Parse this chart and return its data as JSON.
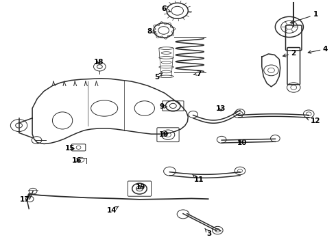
{
  "bg_color": "#ffffff",
  "line_color": "#2a2a2a",
  "figsize": [
    4.9,
    3.6
  ],
  "dpi": 100,
  "label_positions": {
    "1": [
      0.93,
      0.055,
      0.88,
      0.09
    ],
    "2": [
      0.87,
      0.21,
      0.84,
      0.23
    ],
    "3": [
      0.62,
      0.95,
      0.6,
      0.92
    ],
    "4": [
      0.97,
      0.195,
      0.92,
      0.215
    ],
    "5": [
      0.47,
      0.31,
      0.5,
      0.32
    ],
    "6": [
      0.49,
      0.032,
      0.52,
      0.048
    ],
    "7": [
      0.59,
      0.295,
      0.565,
      0.308
    ],
    "8": [
      0.445,
      0.122,
      0.475,
      0.13
    ],
    "9": [
      0.485,
      0.43,
      0.51,
      0.435
    ],
    "10": [
      0.72,
      0.58,
      0.7,
      0.565
    ],
    "11": [
      0.59,
      0.73,
      0.575,
      0.715
    ],
    "12": [
      0.94,
      0.49,
      0.9,
      0.478
    ],
    "13": [
      0.66,
      0.44,
      0.66,
      0.46
    ],
    "14": [
      0.33,
      0.855,
      0.35,
      0.84
    ],
    "15": [
      0.21,
      0.6,
      0.23,
      0.605
    ],
    "16": [
      0.23,
      0.65,
      0.245,
      0.655
    ],
    "17": [
      0.075,
      0.81,
      0.095,
      0.785
    ],
    "18": [
      0.295,
      0.25,
      0.295,
      0.268
    ],
    "19a": [
      0.49,
      0.545,
      0.5,
      0.555
    ],
    "19b": [
      0.42,
      0.76,
      0.415,
      0.775
    ]
  }
}
